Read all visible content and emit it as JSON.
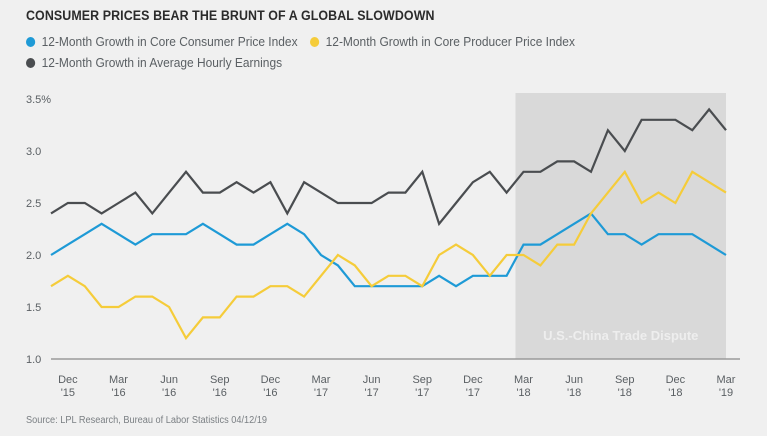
{
  "title": "CONSUMER PRICES BEAR THE BRUNT OF A GLOBAL SLOWDOWN",
  "source": "Source: LPL Research, Bureau of Labor Statistics  04/12/19",
  "colors": {
    "cpi": "#1e9ad6",
    "ppi": "#f5cc3a",
    "earnings": "#4a4d50",
    "shade": "#d9d9d9",
    "axis": "#9a9a9a",
    "shade_label": "#eeeeee"
  },
  "chart_data": {
    "type": "line",
    "title": "CONSUMER PRICES BEAR THE BRUNT OF A GLOBAL SLOWDOWN",
    "xlabel": "",
    "ylabel": "",
    "ylim": [
      1.0,
      3.5
    ],
    "yticks": [
      "3.5%",
      "3.0",
      "2.5",
      "2.0",
      "1.5",
      "1.0"
    ],
    "ytick_values": [
      3.5,
      3.0,
      2.5,
      2.0,
      1.5,
      1.0
    ],
    "grid": false,
    "legend_position": "top-left",
    "x": [
      "Nov '15",
      "Dec '15",
      "Jan '16",
      "Feb '16",
      "Mar '16",
      "Apr '16",
      "May '16",
      "Jun '16",
      "Jul '16",
      "Aug '16",
      "Sep '16",
      "Oct '16",
      "Nov '16",
      "Dec '16",
      "Jan '17",
      "Feb '17",
      "Mar '17",
      "Apr '17",
      "May '17",
      "Jun '17",
      "Jul '17",
      "Aug '17",
      "Sep '17",
      "Oct '17",
      "Nov '17",
      "Dec '17",
      "Jan '18",
      "Feb '18",
      "Mar '18",
      "Apr '18",
      "May '18",
      "Jun '18",
      "Jul '18",
      "Aug '18",
      "Sep '18",
      "Oct '18",
      "Nov '18",
      "Dec '18",
      "Jan '19",
      "Feb '19",
      "Mar '19"
    ],
    "xticks": [
      {
        "month": "Dec",
        "year": "'15",
        "index": 1
      },
      {
        "month": "Mar",
        "year": "'16",
        "index": 4
      },
      {
        "month": "Jun",
        "year": "'16",
        "index": 7
      },
      {
        "month": "Sep",
        "year": "'16",
        "index": 10
      },
      {
        "month": "Dec",
        "year": "'16",
        "index": 13
      },
      {
        "month": "Mar",
        "year": "'17",
        "index": 16
      },
      {
        "month": "Jun",
        "year": "'17",
        "index": 19
      },
      {
        "month": "Sep",
        "year": "'17",
        "index": 22
      },
      {
        "month": "Dec",
        "year": "'17",
        "index": 25
      },
      {
        "month": "Mar",
        "year": "'18",
        "index": 28
      },
      {
        "month": "Jun",
        "year": "'18",
        "index": 31
      },
      {
        "month": "Sep",
        "year": "'18",
        "index": 34
      },
      {
        "month": "Dec",
        "year": "'18",
        "index": 37
      },
      {
        "month": "Mar",
        "year": "'19",
        "index": 40
      }
    ],
    "series": [
      {
        "name": "12-Month Growth in Core Consumer Price Index",
        "key": "cpi",
        "values": [
          2.0,
          2.1,
          2.2,
          2.3,
          2.2,
          2.1,
          2.2,
          2.2,
          2.2,
          2.3,
          2.2,
          2.1,
          2.1,
          2.2,
          2.3,
          2.2,
          2.0,
          1.9,
          1.7,
          1.7,
          1.7,
          1.7,
          1.7,
          1.8,
          1.7,
          1.8,
          1.8,
          1.8,
          2.1,
          2.1,
          2.2,
          2.3,
          2.4,
          2.2,
          2.2,
          2.1,
          2.2,
          2.2,
          2.2,
          2.1,
          2.0
        ]
      },
      {
        "name": "12-Month Growth in Core Producer Price Index",
        "key": "ppi",
        "values": [
          1.7,
          1.8,
          1.7,
          1.5,
          1.5,
          1.6,
          1.6,
          1.5,
          1.2,
          1.4,
          1.4,
          1.6,
          1.6,
          1.7,
          1.7,
          1.6,
          1.8,
          2.0,
          1.9,
          1.7,
          1.8,
          1.8,
          1.7,
          2.0,
          2.1,
          2.0,
          1.8,
          2.0,
          2.0,
          1.9,
          2.1,
          2.1,
          2.4,
          2.6,
          2.8,
          2.5,
          2.6,
          2.5,
          2.8,
          2.7,
          2.6
        ]
      },
      {
        "name": "12-Month Growth in Average Hourly Earnings",
        "key": "earnings",
        "values": [
          2.4,
          2.5,
          2.5,
          2.4,
          2.5,
          2.6,
          2.4,
          2.6,
          2.8,
          2.6,
          2.6,
          2.7,
          2.6,
          2.7,
          2.4,
          2.7,
          2.6,
          2.5,
          2.5,
          2.5,
          2.6,
          2.6,
          2.8,
          2.3,
          2.5,
          2.7,
          2.8,
          2.6,
          2.8,
          2.8,
          2.9,
          2.9,
          2.8,
          3.2,
          3.0,
          3.3,
          3.3,
          3.3,
          3.2,
          3.4,
          3.2
        ]
      }
    ],
    "annotations": [
      {
        "type": "shaded-region",
        "label": "U.S.-China Trade Dispute",
        "from": "Mar '18",
        "to": "Mar '19"
      }
    ]
  }
}
